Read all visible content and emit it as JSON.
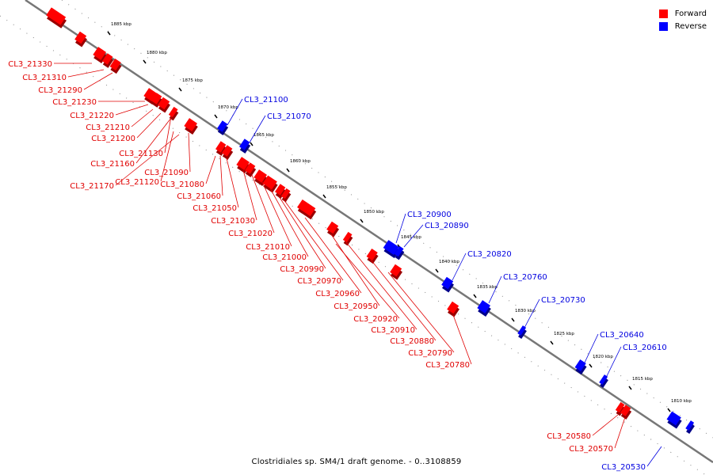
{
  "legend": {
    "forward_label": "Forward",
    "reverse_label": "Reverse",
    "forward_color": "#ff0000",
    "reverse_color": "#0000ff"
  },
  "caption": "Clostridiales sp. SM4/1 draft genome. - 0..3108859",
  "scale_ticks": [
    "1885 kbp",
    "1880 kbp",
    "1875 kbp",
    "1870 kbp",
    "1865 kbp",
    "1860 kbp",
    "1855 kbp",
    "1850 kbp",
    "1845 kbp",
    "1840 kbp",
    "1835 kbp",
    "1830 kbp",
    "1825 kbp",
    "1820 kbp",
    "1815 kbp",
    "1810 kbp"
  ],
  "forward_genes": [
    "CL3_21330",
    "CL3_21310",
    "CL3_21290",
    "CL3_21230",
    "CL3_21220",
    "CL3_21210",
    "CL3_21200",
    "CL3_21130",
    "CL3_21160",
    "CL3_21090",
    "CL3_21120",
    "CL3_21080",
    "CL3_21170",
    "CL3_21060",
    "CL3_21050",
    "CL3_21030",
    "CL3_21020",
    "CL3_21010",
    "CL3_21000",
    "CL3_20990",
    "CL3_20970",
    "CL3_20960",
    "CL3_20950",
    "CL3_20920",
    "CL3_20910",
    "CL3_20880",
    "CL3_20790",
    "CL3_20780",
    "CL3_20580",
    "CL3_20570"
  ],
  "reverse_genes": [
    "CL3_21100",
    "CL3_21070",
    "CL3_20900",
    "CL3_20890",
    "CL3_20820",
    "CL3_20760",
    "CL3_20730",
    "CL3_20640",
    "CL3_20610",
    "CL3_20530"
  ]
}
